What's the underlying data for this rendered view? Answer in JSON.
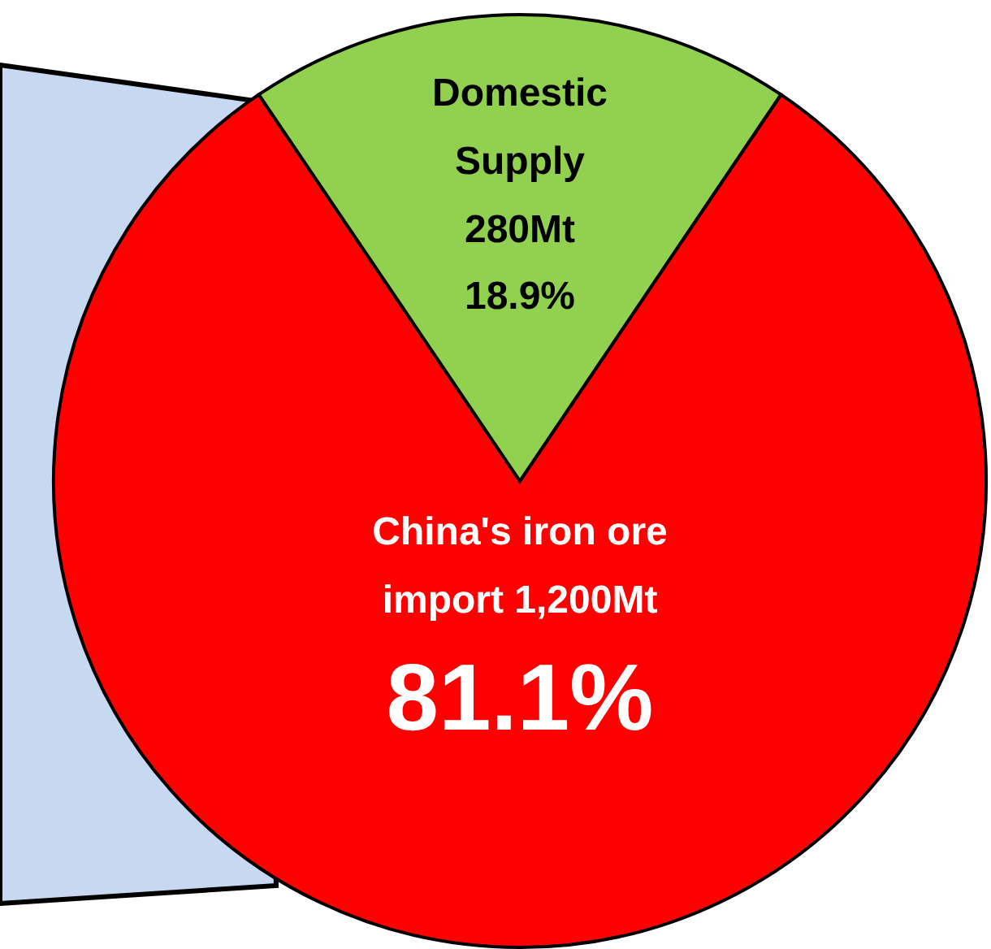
{
  "chart_data": {
    "type": "pie",
    "categories": [
      "China's iron ore import",
      "Domestic Supply"
    ],
    "values": [
      1200,
      280
    ],
    "value_labels": [
      "1,200Mt",
      "280Mt"
    ],
    "annotations": [
      "81.1%",
      "18.9%"
    ],
    "colors": [
      "#ff0000",
      "#92d050"
    ]
  }
}
